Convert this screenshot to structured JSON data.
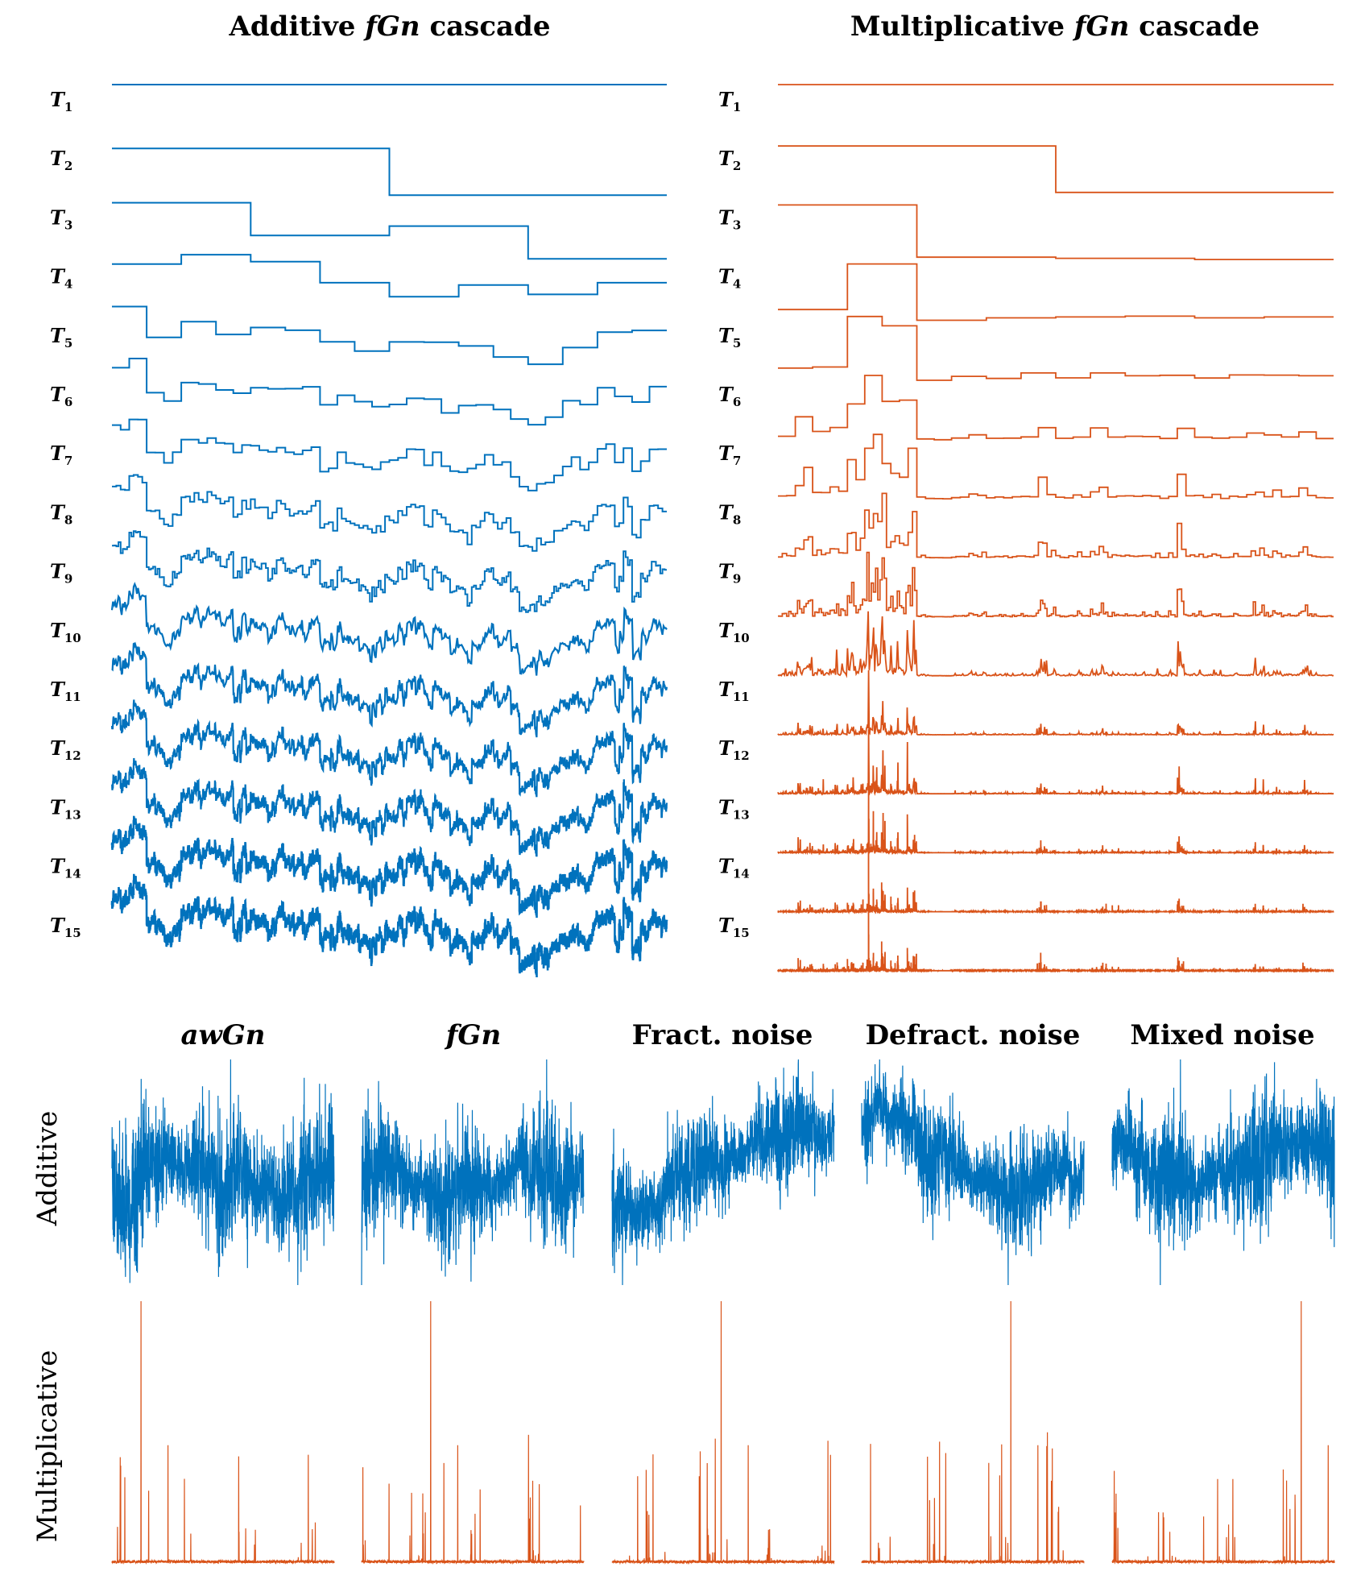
{
  "colors": {
    "additive": "#0072bd",
    "multiplicative": "#d95319"
  },
  "chart_data": [
    {
      "type": "line",
      "title_parts": [
        "Additive ",
        "fGn",
        " cascade"
      ],
      "series_labels": [
        {
          "base": "T",
          "sub": "1"
        },
        {
          "base": "T",
          "sub": "2"
        },
        {
          "base": "T",
          "sub": "3"
        },
        {
          "base": "T",
          "sub": "4"
        },
        {
          "base": "T",
          "sub": "5"
        },
        {
          "base": "T",
          "sub": "6"
        },
        {
          "base": "T",
          "sub": "7"
        },
        {
          "base": "T",
          "sub": "8"
        },
        {
          "base": "T",
          "sub": "9"
        },
        {
          "base": "T",
          "sub": "10"
        },
        {
          "base": "T",
          "sub": "11"
        },
        {
          "base": "T",
          "sub": "12"
        },
        {
          "base": "T",
          "sub": "13"
        },
        {
          "base": "T",
          "sub": "14"
        },
        {
          "base": "T",
          "sub": "15"
        }
      ],
      "levels": 15,
      "step_values_T2": [
        0.5,
        -0.5
      ],
      "step_values_T3": [
        0.6,
        -0.1,
        0.1,
        -0.6
      ],
      "step_values_T4": [
        0.55,
        0.75,
        0.6,
        0.15,
        -0.15,
        0.1,
        -0.1,
        0.15
      ],
      "samples_per_level": "2^(k-1)",
      "axes": "off"
    },
    {
      "type": "line",
      "title_parts": [
        "Multiplicative ",
        "fGn",
        " cascade"
      ],
      "series_labels": [
        {
          "base": "T",
          "sub": "1"
        },
        {
          "base": "T",
          "sub": "2"
        },
        {
          "base": "T",
          "sub": "3"
        },
        {
          "base": "T",
          "sub": "4"
        },
        {
          "base": "T",
          "sub": "5"
        },
        {
          "base": "T",
          "sub": "6"
        },
        {
          "base": "T",
          "sub": "7"
        },
        {
          "base": "T",
          "sub": "8"
        },
        {
          "base": "T",
          "sub": "9"
        },
        {
          "base": "T",
          "sub": "10"
        },
        {
          "base": "T",
          "sub": "11"
        },
        {
          "base": "T",
          "sub": "12"
        },
        {
          "base": "T",
          "sub": "13"
        },
        {
          "base": "T",
          "sub": "14"
        },
        {
          "base": "T",
          "sub": "15"
        }
      ],
      "levels": 15,
      "step_values_T2": [
        1.0,
        0.2
      ],
      "step_values_T3": [
        1.0,
        0.1,
        0.08,
        0.06
      ],
      "step_values_T4": [
        0.15,
        0.7,
        0.02,
        0.05,
        0.06,
        0.07,
        0.05,
        0.06
      ],
      "axes": "off"
    },
    {
      "type": "line",
      "panel_grid": "2x5",
      "columns": [
        {
          "title": "awGn",
          "italic": true
        },
        {
          "title": "fGn",
          "italic": true
        },
        {
          "title": "Fract. noise",
          "italic": false
        },
        {
          "title": "Defract. noise",
          "italic": false
        },
        {
          "title": "Mixed noise",
          "italic": false
        }
      ],
      "rows": [
        {
          "label": "Additive",
          "kind": "additive"
        },
        {
          "label": "Multiplicative",
          "kind": "multiplicative"
        }
      ],
      "axes": "off"
    }
  ]
}
